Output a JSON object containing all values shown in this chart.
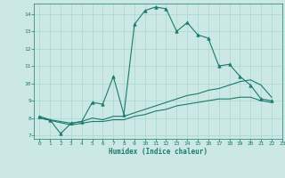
{
  "title": "",
  "xlabel": "Humidex (Indice chaleur)",
  "ylabel": "",
  "xlim": [
    -0.5,
    23
  ],
  "ylim": [
    6.8,
    14.6
  ],
  "yticks": [
    7,
    8,
    9,
    10,
    11,
    12,
    13,
    14
  ],
  "xticks": [
    0,
    1,
    2,
    3,
    4,
    5,
    6,
    7,
    8,
    9,
    10,
    11,
    12,
    13,
    14,
    15,
    16,
    17,
    18,
    19,
    20,
    21,
    22,
    23
  ],
  "bg_color": "#cce8e4",
  "line_color": "#1a7a6e",
  "grid_color": "#a8d8d0",
  "lines": [
    {
      "x": [
        0,
        1,
        2,
        3,
        4,
        5,
        6,
        7,
        8,
        9,
        10,
        11,
        12,
        13,
        14,
        15,
        16,
        17,
        18,
        19,
        20,
        21,
        22
      ],
      "y": [
        8.1,
        7.9,
        7.1,
        7.7,
        7.8,
        8.9,
        8.8,
        10.4,
        8.2,
        13.4,
        14.2,
        14.4,
        14.3,
        13.0,
        13.5,
        12.8,
        12.6,
        11.0,
        11.1,
        10.4,
        9.9,
        9.1,
        9.0
      ],
      "marker": true
    },
    {
      "x": [
        0,
        3,
        4,
        5,
        6,
        7,
        8,
        9,
        10,
        11,
        12,
        13,
        14,
        15,
        16,
        17,
        18,
        19,
        20,
        21,
        22
      ],
      "y": [
        8.0,
        7.7,
        7.8,
        8.0,
        7.9,
        8.1,
        8.1,
        8.3,
        8.5,
        8.7,
        8.9,
        9.1,
        9.3,
        9.4,
        9.6,
        9.7,
        9.9,
        10.1,
        10.2,
        9.9,
        9.2
      ],
      "marker": false
    },
    {
      "x": [
        0,
        3,
        4,
        5,
        6,
        7,
        8,
        9,
        10,
        11,
        12,
        13,
        14,
        15,
        16,
        17,
        18,
        19,
        20,
        21,
        22
      ],
      "y": [
        8.0,
        7.6,
        7.7,
        7.8,
        7.8,
        7.9,
        7.9,
        8.1,
        8.2,
        8.4,
        8.5,
        8.7,
        8.8,
        8.9,
        9.0,
        9.1,
        9.1,
        9.2,
        9.2,
        9.0,
        8.9
      ],
      "marker": false
    }
  ],
  "figsize": [
    3.2,
    2.0
  ],
  "dpi": 100
}
